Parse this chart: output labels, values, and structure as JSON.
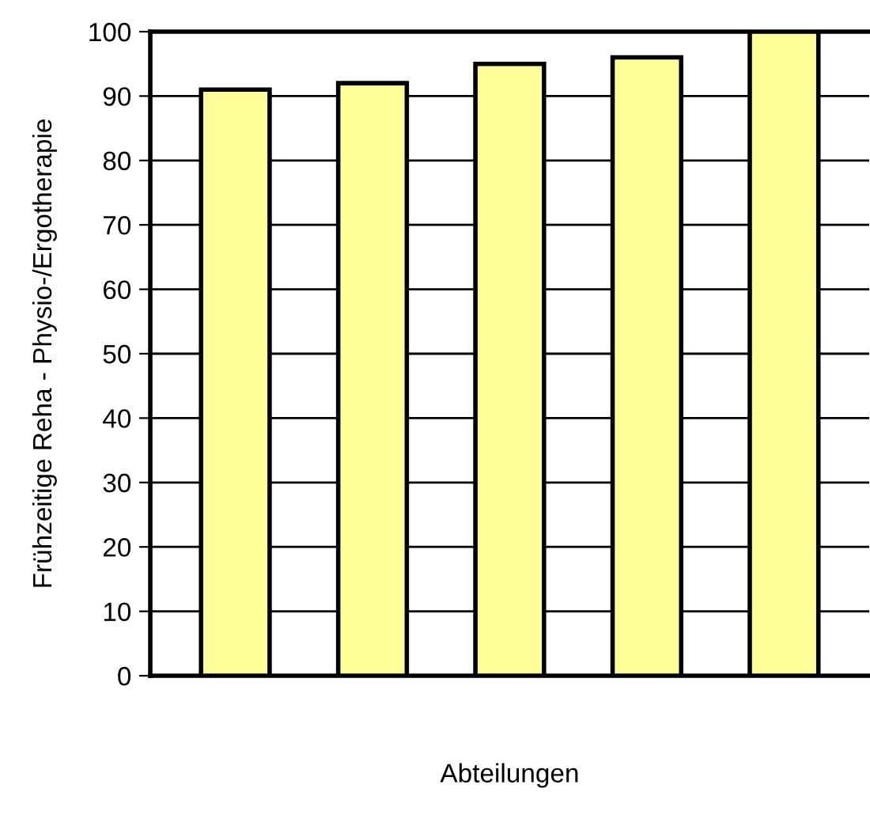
{
  "chart_data": {
    "type": "bar",
    "xlabel": "Abteilungen",
    "ylabel": "Frühzeitige Reha - Physio-/Ergotherapie",
    "categories": [
      null,
      null,
      null,
      null,
      null
    ],
    "values": [
      91,
      92,
      95,
      96,
      100
    ],
    "color": "#ffff99",
    "ylim": [
      0,
      100
    ],
    "yticks": [
      0,
      10,
      20,
      30,
      40,
      50,
      60,
      70,
      80,
      90,
      100
    ],
    "grid": "y",
    "legend": false
  }
}
